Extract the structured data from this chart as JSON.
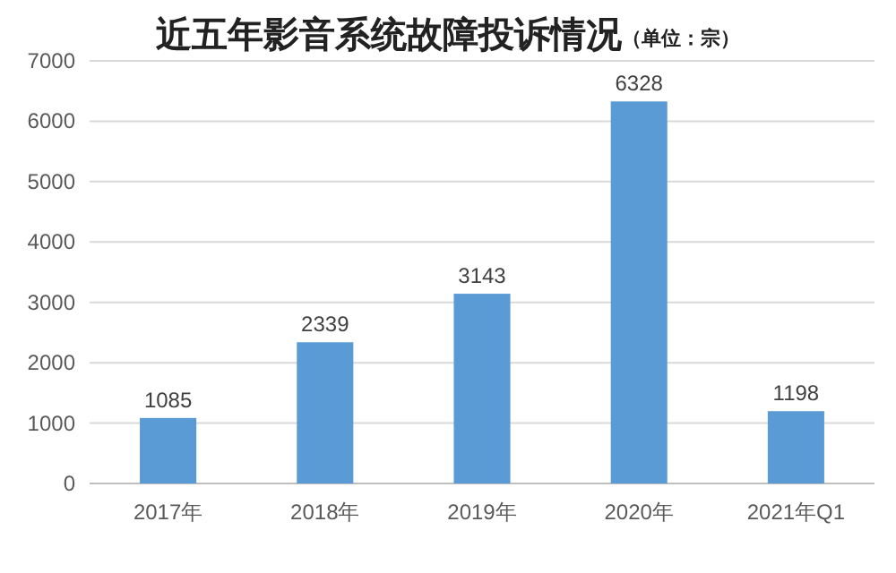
{
  "chart_data": {
    "type": "bar",
    "title": "近五年影音系统故障投诉情况",
    "subtitle": "（单位：宗）",
    "categories": [
      "2017年",
      "2018年",
      "2019年",
      "2020年",
      "2021年Q1"
    ],
    "values": [
      1085,
      2339,
      3143,
      6328,
      1198
    ],
    "color": "#5b9bd5",
    "ylim": [
      0,
      7000
    ],
    "yticks": [
      0,
      1000,
      2000,
      3000,
      4000,
      5000,
      6000,
      7000
    ],
    "grid": "y",
    "data_labels": true
  }
}
